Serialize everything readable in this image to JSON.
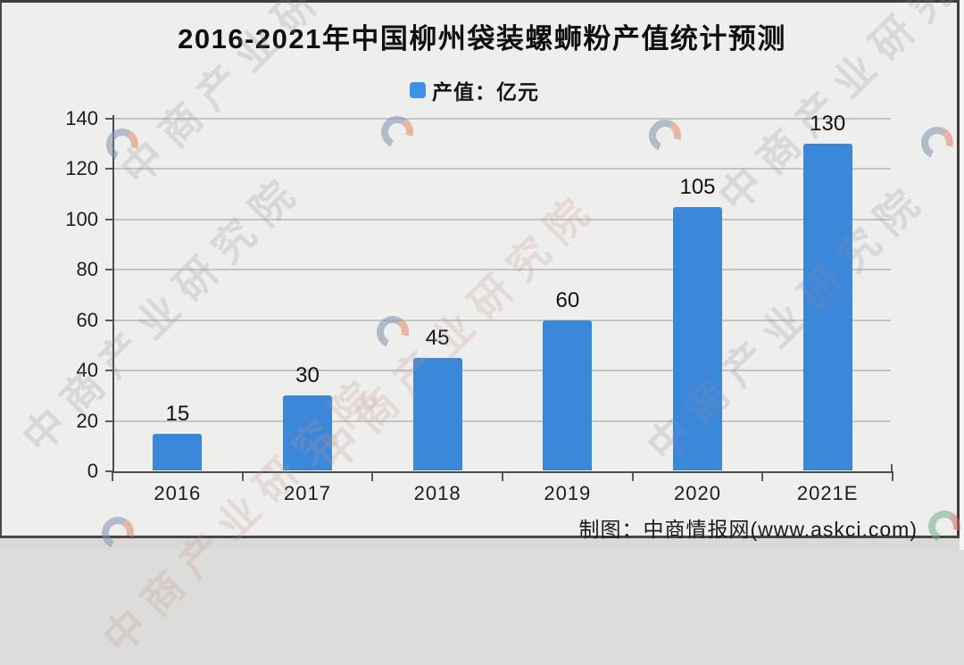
{
  "title": "2016-2021年中国柳州袋装螺蛳粉产值统计预测",
  "legend": {
    "label": "产值：亿元",
    "swatch_color": "#3f90e8"
  },
  "footer": {
    "credit": "制图：中商情报网(www.askci.com)"
  },
  "watermark": {
    "text": "中商产业研究院"
  },
  "colors": {
    "bar": "#3b88da",
    "grid": "#c4c4c2",
    "axis": "#4d4d4d",
    "background": "#eeeeec"
  },
  "chart_data": {
    "type": "bar",
    "title": "2016-2021年中国柳州袋装螺蛳粉产值统计预测",
    "categories": [
      "2016",
      "2017",
      "2018",
      "2019",
      "2020",
      "2021E"
    ],
    "values": [
      15,
      30,
      45,
      60,
      105,
      130
    ],
    "series_name": "产值：亿元",
    "unit": "亿元",
    "xlabel": "",
    "ylabel": "",
    "ylim": [
      0,
      140
    ],
    "yticks": [
      0,
      20,
      40,
      60,
      80,
      100,
      120,
      140
    ],
    "grid": true,
    "legend_position": "top-center",
    "value_labels": true,
    "bar_color": "#3b88da"
  }
}
